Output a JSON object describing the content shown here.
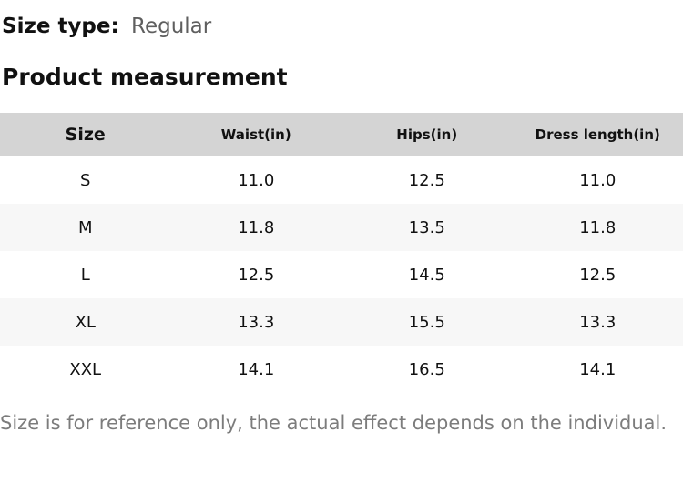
{
  "page": {
    "size_type_label": "Size type:",
    "size_type_value": "Regular",
    "section_title": "Product measurement",
    "disclaimer": "Size is for reference only, the actual effect depends on the individual."
  },
  "table": {
    "columns": [
      "Size",
      "Waist(in)",
      "Hips(in)",
      "Dress length(in)"
    ],
    "rows": [
      [
        "S",
        "11.0",
        "12.5",
        "11.0"
      ],
      [
        "M",
        "11.8",
        "13.5",
        "11.8"
      ],
      [
        "L",
        "12.5",
        "14.5",
        "12.5"
      ],
      [
        "XL",
        "13.3",
        "15.5",
        "13.3"
      ],
      [
        "XXL",
        "14.1",
        "16.5",
        "14.1"
      ]
    ]
  },
  "colors": {
    "header_bg": "#d4d4d4",
    "stripe_bg": "#f7f7f7",
    "text": "#111111",
    "muted_value": "#5f5f5f",
    "disclaimer_text": "#7c7c7c"
  }
}
